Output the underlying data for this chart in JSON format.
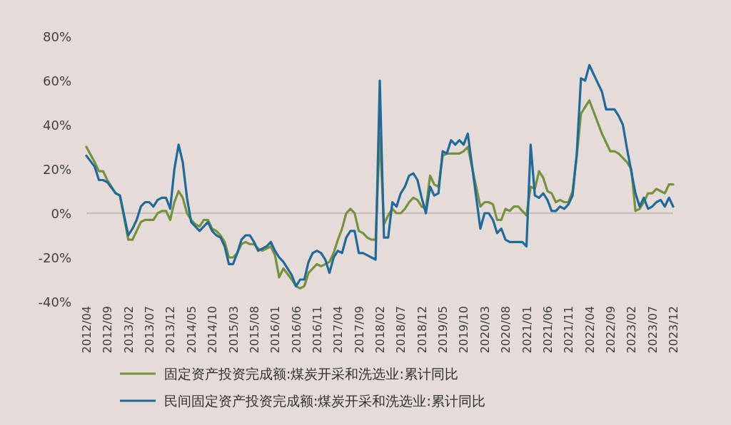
{
  "chart_data": {
    "type": "line",
    "x": [
      "2012-04",
      "2012-06",
      "2012-07",
      "2012-08",
      "2012-09",
      "2012-11",
      "2012-12",
      "2013-02",
      "2013-03",
      "2013-04",
      "2013-05",
      "2013-06",
      "2013-07",
      "2013-08",
      "2013-09",
      "2013-10",
      "2013-11",
      "2013-12",
      "2014-01",
      "2014-02",
      "2014-03",
      "2014-04",
      "2014-05",
      "2014-06",
      "2014-07",
      "2014-08",
      "2014-09",
      "2014-10",
      "2014-11",
      "2014-12",
      "2015-01",
      "2015-02",
      "2015-03",
      "2015-04",
      "2015-05",
      "2015-06",
      "2015-07",
      "2015-08",
      "2015-09",
      "2015-10",
      "2015-11",
      "2015-12",
      "2016-01",
      "2016-02",
      "2016-03",
      "2016-05",
      "2016-06",
      "2016-07",
      "2016-08",
      "2016-09",
      "2016-10",
      "2016-11",
      "2016-12",
      "2017-01",
      "2017-02",
      "2017-03",
      "2017-04",
      "2017-05",
      "2017-06",
      "2017-07",
      "2017-08",
      "2017-09",
      "2017-10",
      "2017-11",
      "2017-12",
      "2018-01",
      "2018-02",
      "2018-03",
      "2018-04",
      "2018-05",
      "2018-06",
      "2018-07",
      "2018-08",
      "2018-09",
      "2018-10",
      "2018-11",
      "2018-12",
      "2019-01",
      "2019-02",
      "2019-03",
      "2019-04",
      "2019-05",
      "2019-06",
      "2019-07",
      "2019-08",
      "2019-09",
      "2019-10",
      "2019-11",
      "2020-02",
      "2020-03",
      "2020-04",
      "2020-05",
      "2020-06",
      "2020-07",
      "2020-08",
      "2020-09",
      "2020-10",
      "2020-11",
      "2020-12",
      "2021-01",
      "2021-02",
      "2021-03",
      "2021-04",
      "2021-05",
      "2021-06",
      "2021-07",
      "2021-08",
      "2021-09",
      "2021-10",
      "2021-11",
      "2021-12",
      "2022-01",
      "2022-02",
      "2022-03",
      "2022-04",
      "2022-05",
      "2022-06",
      "2022-07",
      "2022-08",
      "2022-09",
      "2022-10",
      "2022-11",
      "2022-12",
      "2023-01",
      "2023-02",
      "2023-03",
      "2023-04",
      "2023-05",
      "2023-06",
      "2023-07",
      "2023-08",
      "2023-09",
      "2023-10",
      "2023-11",
      "2023-12"
    ],
    "series": [
      {
        "name": "固定资产投资完成额:煤炭开采和洗选业:累计同比",
        "color": "#76923c",
        "values": [
          30,
          23,
          19,
          19,
          15,
          9,
          8,
          -12,
          -12,
          -8,
          -4,
          -3,
          -3,
          -3,
          0,
          1,
          1,
          -3,
          5,
          10,
          7,
          0,
          -3,
          -5,
          -6,
          -3,
          -3,
          -7,
          -8,
          -10,
          -13,
          -20,
          -20,
          -18,
          -14,
          -13,
          -14,
          -14,
          -16,
          -17,
          -16,
          -15,
          -19,
          -29,
          -25,
          -30,
          -33,
          -34,
          -33,
          -27,
          -25,
          -23,
          -24,
          -23,
          -22,
          -18,
          -12,
          -7,
          0,
          2,
          0,
          -8,
          -9,
          -11,
          -12,
          -12,
          36,
          -5,
          -1,
          2,
          0,
          0,
          2,
          5,
          7,
          6,
          3,
          2,
          17,
          13,
          12,
          26,
          27,
          27,
          27,
          27,
          28,
          30,
          3,
          5,
          5,
          4,
          -3,
          -3,
          2,
          1,
          3,
          3,
          1,
          -1,
          12,
          11,
          19,
          16,
          10,
          9,
          5,
          6,
          5,
          5,
          10,
          26,
          45,
          48,
          51,
          46,
          41,
          36,
          32,
          28,
          28,
          27,
          25,
          23,
          20,
          1,
          2,
          5,
          9,
          9,
          11,
          10,
          9,
          13,
          13
        ]
      },
      {
        "name": "民间固定资产投资完成额:煤炭开采和洗选业:累计同比",
        "color": "#1f6a9a",
        "values": [
          26,
          21,
          15,
          15,
          14,
          9,
          8,
          -10,
          -7,
          -3,
          3,
          5,
          5,
          3,
          6,
          7,
          7,
          2,
          20,
          31,
          23,
          7,
          -4,
          -6,
          -8,
          -6,
          -4,
          -8,
          -10,
          -11,
          -15,
          -23,
          -23,
          -18,
          -12,
          -10,
          -10,
          -13,
          -17,
          -16,
          -15,
          -13,
          -17,
          -20,
          -22,
          -28,
          -33,
          -30,
          -30,
          -22,
          -18,
          -17,
          -18,
          -21,
          -27,
          -20,
          -17,
          -18,
          -11,
          -8,
          -8,
          -18,
          -18,
          -19,
          -20,
          -21,
          60,
          -11,
          -11,
          5,
          3,
          9,
          12,
          17,
          18,
          15,
          7,
          0,
          12,
          8,
          9,
          28,
          27,
          33,
          31,
          33,
          31,
          36,
          -7,
          0,
          0,
          -3,
          -9,
          -7,
          -12,
          -13,
          -13,
          -13,
          -13,
          -15,
          31,
          8,
          7,
          9,
          6,
          1,
          1,
          3,
          2,
          4,
          8,
          27,
          61,
          60,
          67,
          63,
          59,
          55,
          47,
          47,
          47,
          44,
          40,
          29,
          19,
          9,
          3,
          7,
          2,
          3,
          5,
          6,
          3,
          7,
          3
        ]
      }
    ],
    "xlim": [
      "2012-04",
      "2023-12"
    ],
    "xticks": [
      {
        "value": "2012-04",
        "label": "2012/04"
      },
      {
        "value": "2012-09",
        "label": "2012/09"
      },
      {
        "value": "2013-02",
        "label": "2013/02"
      },
      {
        "value": "2013-07",
        "label": "2013/07"
      },
      {
        "value": "2013-12",
        "label": "2013/12"
      },
      {
        "value": "2014-05",
        "label": "2014/05"
      },
      {
        "value": "2014-10",
        "label": "2014/10"
      },
      {
        "value": "2015-03",
        "label": "2015/03"
      },
      {
        "value": "2015-08",
        "label": "2015/08"
      },
      {
        "value": "2016-01",
        "label": "2016/01"
      },
      {
        "value": "2016-06",
        "label": "2016/06"
      },
      {
        "value": "2016-11",
        "label": "2016/11"
      },
      {
        "value": "2017-04",
        "label": "2017/04"
      },
      {
        "value": "2017-09",
        "label": "2017/09"
      },
      {
        "value": "2018-02",
        "label": "2018/02"
      },
      {
        "value": "2018-07",
        "label": "2018/07"
      },
      {
        "value": "2018-12",
        "label": "2018/12"
      },
      {
        "value": "2019-05",
        "label": "2019/05"
      },
      {
        "value": "2019-10",
        "label": "2019/10"
      },
      {
        "value": "2020-03",
        "label": "2020/03"
      },
      {
        "value": "2020-08",
        "label": "2020/08"
      },
      {
        "value": "2021-01",
        "label": "2021/01"
      },
      {
        "value": "2021-06",
        "label": "2021/06"
      },
      {
        "value": "2021-11",
        "label": "2021/11"
      },
      {
        "value": "2022-04",
        "label": "2022/04"
      },
      {
        "value": "2022-09",
        "label": "2022/09"
      },
      {
        "value": "2023-02",
        "label": "2023/02"
      },
      {
        "value": "2023-07",
        "label": "2023/07"
      },
      {
        "value": "2023-12",
        "label": "2023/12"
      }
    ],
    "ylim": [
      -40,
      80
    ],
    "yticks": [
      {
        "value": -40,
        "label": "-40%"
      },
      {
        "value": -20,
        "label": "-20%"
      },
      {
        "value": 0,
        "label": "0%"
      },
      {
        "value": 20,
        "label": "20%"
      },
      {
        "value": 40,
        "label": "40%"
      },
      {
        "value": 60,
        "label": "60%"
      },
      {
        "value": 80,
        "label": "80%"
      }
    ],
    "ref_lines": [
      {
        "axis": "y",
        "value": 0,
        "color": "#bfb3b0"
      }
    ],
    "legend": "bottom",
    "marker": "none",
    "line_style": "solid"
  }
}
